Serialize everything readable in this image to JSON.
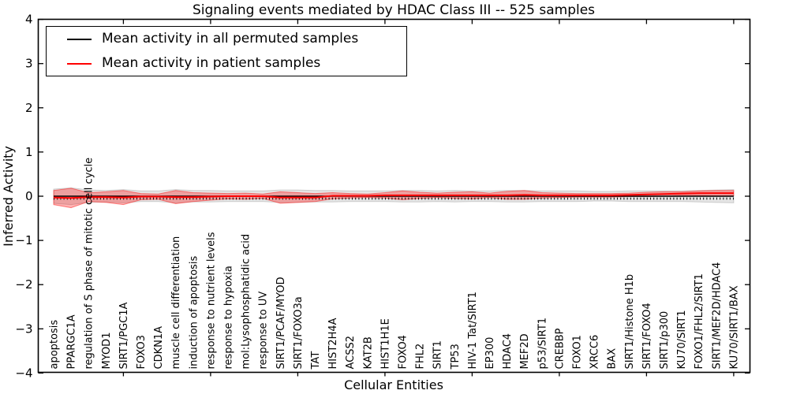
{
  "figure": {
    "title": "Signaling events mediated by HDAC Class III -- 525 samples",
    "background": "#ffffff"
  },
  "chart_data": {
    "type": "line",
    "title": "Signaling events mediated by HDAC Class III -- 525 samples",
    "xlabel": "Cellular Entities",
    "ylabel": "Inferred Activity",
    "ylim": [
      -4,
      4
    ],
    "yticks": [
      4,
      3,
      2,
      1,
      0,
      -1,
      -2,
      -3,
      -4
    ],
    "x_major_tick_every": 5,
    "grid": false,
    "legend_position": "upper left",
    "categories": [
      "apoptosis",
      "PPARGC1A",
      "regulation of S phase of mitotic cell cycle",
      "MYOD1",
      "SIRT1/PGC1A",
      "FOXO3",
      "CDKN1A",
      "muscle cell differentiation",
      "induction of apoptosis",
      "response to nutrient levels",
      "response to hypoxia",
      "mol:Lysophosphatidic acid",
      "response to UV",
      "SIRT1/PCAF/MYOD",
      "SIRT1/FOXO3a",
      "TAT",
      "HIST2H4A",
      "ACSS2",
      "KAT2B",
      "HIST1H1E",
      "FOXO4",
      "FHL2",
      "SIRT1",
      "TP53",
      "HIV-1 Tat/SIRT1",
      "EP300",
      "HDAC4",
      "MEF2D",
      "p53/SIRT1",
      "CREBBP",
      "FOXO1",
      "XRCC6",
      "BAX",
      "SIRT1/Histone H1b",
      "SIRT1/FOXO4",
      "SIRT1/p300",
      "KU70/SIRT1",
      "FOXO1/FHL2/SIRT1",
      "SIRT1/MEF2D/HDAC4",
      "KU70/SIRT1/BAX"
    ],
    "series": [
      {
        "name": "Mean activity in all permuted samples",
        "color": "#000000",
        "style": "solid with dotted underline",
        "values": [
          0,
          0,
          0,
          0,
          0,
          0,
          0,
          0,
          0,
          0,
          0,
          0,
          0,
          0,
          0,
          0,
          0,
          0,
          0,
          0,
          0,
          0,
          0,
          0,
          0,
          0,
          0,
          0,
          0,
          0,
          0,
          0,
          0,
          0,
          0,
          0,
          0,
          0,
          0,
          0
        ]
      },
      {
        "name": "Mean activity in patient samples",
        "color": "#ff0000",
        "style": "solid",
        "values": [
          -0.03,
          -0.04,
          -0.02,
          -0.02,
          -0.03,
          -0.01,
          -0.01,
          -0.02,
          -0.02,
          -0.01,
          0,
          0,
          0,
          -0.03,
          -0.03,
          -0.03,
          0.01,
          0.01,
          0.01,
          0.02,
          0.02,
          0.02,
          0.02,
          0.02,
          0.02,
          0.02,
          0.02,
          0.03,
          0.02,
          0.02,
          0.02,
          0.02,
          0.02,
          0.03,
          0.04,
          0.05,
          0.06,
          0.07,
          0.07,
          0.07
        ]
      }
    ],
    "bands": [
      {
        "name": "permuted samples activity spread",
        "color": "#888888",
        "center_series": 0,
        "halfwidths": [
          0.16,
          0.19,
          0.14,
          0.13,
          0.15,
          0.12,
          0.12,
          0.15,
          0.13,
          0.13,
          0.12,
          0.12,
          0.12,
          0.14,
          0.14,
          0.13,
          0.13,
          0.12,
          0.12,
          0.12,
          0.13,
          0.13,
          0.12,
          0.13,
          0.12,
          0.12,
          0.13,
          0.13,
          0.12,
          0.12,
          0.12,
          0.11,
          0.11,
          0.12,
          0.12,
          0.12,
          0.12,
          0.13,
          0.14,
          0.15
        ]
      },
      {
        "name": "patient samples activity spread",
        "color": "#ff0000",
        "center_series": 1,
        "halfwidths": [
          0.16,
          0.22,
          0.1,
          0.12,
          0.16,
          0.07,
          0.06,
          0.15,
          0.1,
          0.08,
          0.06,
          0.07,
          0.05,
          0.13,
          0.11,
          0.09,
          0.07,
          0.05,
          0.04,
          0.06,
          0.1,
          0.07,
          0.05,
          0.07,
          0.08,
          0.05,
          0.09,
          0.1,
          0.06,
          0.05,
          0.04,
          0.04,
          0.04,
          0.04,
          0.05,
          0.05,
          0.04,
          0.05,
          0.06,
          0.06
        ]
      }
    ]
  }
}
